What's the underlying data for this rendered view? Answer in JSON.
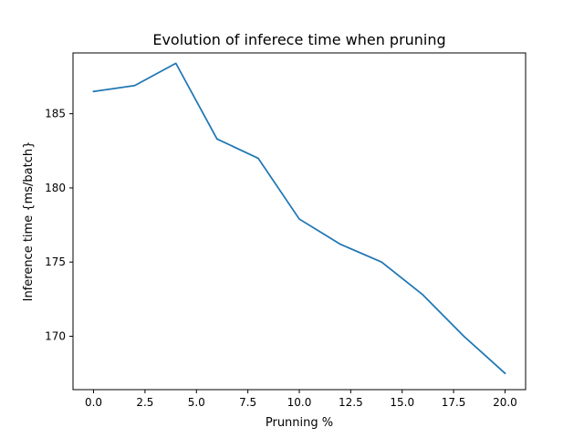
{
  "chart_data": {
    "type": "line",
    "title": "Evolution of inferece time when pruning",
    "xlabel": "Prunning %",
    "ylabel": "Inference time {ms/batch}",
    "xlim": [
      -1.0,
      21.0
    ],
    "ylim": [
      166.4,
      189.1
    ],
    "x_ticks": [
      0.0,
      2.5,
      5.0,
      7.5,
      10.0,
      12.5,
      15.0,
      17.5,
      20.0
    ],
    "x_tick_labels": [
      "0.0",
      "2.5",
      "5.0",
      "7.5",
      "10.0",
      "12.5",
      "15.0",
      "17.5",
      "20.0"
    ],
    "y_ticks": [
      170,
      175,
      180,
      185
    ],
    "y_tick_labels": [
      "170",
      "175",
      "180",
      "185"
    ],
    "grid": false,
    "series": [
      {
        "color": "#1f77b4",
        "x": [
          0,
          2,
          4,
          6,
          8,
          10,
          12,
          14,
          16,
          18,
          20
        ],
        "y": [
          186.5,
          186.9,
          188.4,
          183.3,
          182.0,
          177.9,
          176.2,
          175.0,
          172.8,
          170.0,
          167.5
        ]
      }
    ]
  }
}
